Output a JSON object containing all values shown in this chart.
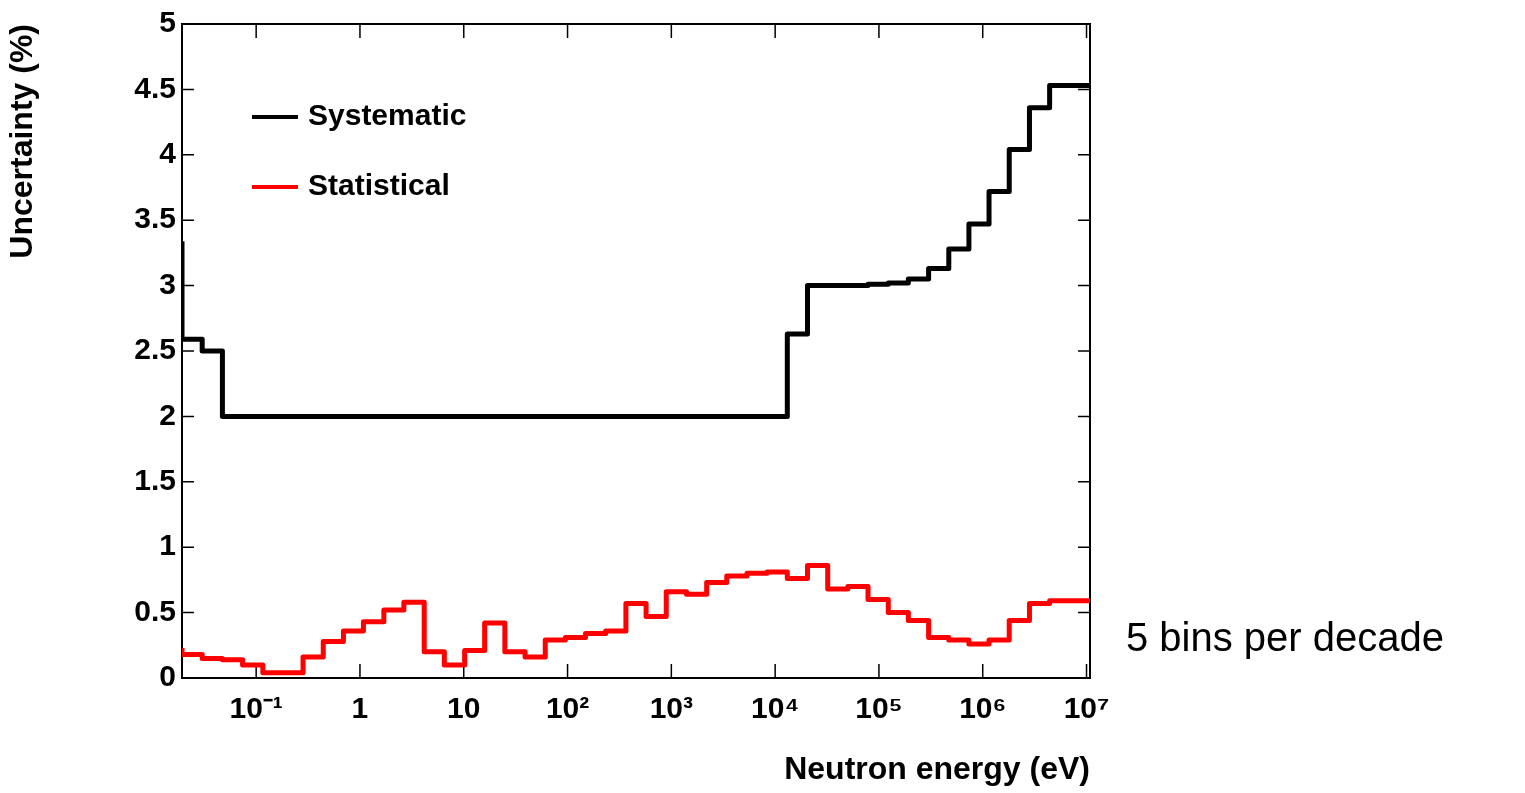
{
  "chart_data": {
    "type": "step",
    "xlabel": "Neutron energy (eV)",
    "ylabel": "Uncertainty (%)",
    "x": [
      0.0193,
      0.0302,
      0.0473,
      0.074,
      0.116,
      0.181,
      0.283,
      0.443,
      0.693,
      1.08,
      1.7,
      2.65,
      4.16,
      6.5,
      10.2,
      15.9,
      24.9,
      39,
      61,
      95.3,
      149,
      233,
      365,
      571,
      893,
      1400,
      2190,
      3420,
      5360,
      8380,
      13100,
      20500,
      32100,
      50200,
      78500,
      123000,
      192000,
      301000,
      471000,
      736000,
      1150000,
      1800000,
      2820000,
      4410000,
      6900000,
      10800000
    ],
    "series": [
      {
        "name": "Systematic",
        "color": "#000000",
        "values": [
          3.34,
          2.59,
          2.5,
          2,
          2,
          2,
          2,
          2,
          2,
          2,
          2,
          2,
          2,
          2,
          2,
          2,
          2,
          2,
          2,
          2,
          2,
          2,
          2,
          2,
          2,
          2,
          2,
          2,
          2,
          2,
          2,
          2.63,
          3,
          3,
          3,
          3.01,
          3.02,
          3.05,
          3.13,
          3.28,
          3.47,
          3.72,
          4.04,
          4.36,
          4.53,
          4.53
        ]
      },
      {
        "name": "Statistical",
        "color": "#ff0000",
        "values": [
          0.23,
          0.18,
          0.15,
          0.14,
          0.1,
          0.04,
          0.04,
          0.16,
          0.28,
          0.36,
          0.43,
          0.52,
          0.58,
          0.2,
          0.1,
          0.21,
          0.42,
          0.2,
          0.16,
          0.29,
          0.31,
          0.34,
          0.36,
          0.57,
          0.47,
          0.66,
          0.64,
          0.73,
          0.78,
          0.8,
          0.81,
          0.76,
          0.86,
          0.68,
          0.7,
          0.6,
          0.5,
          0.44,
          0.31,
          0.29,
          0.26,
          0.29,
          0.44,
          0.57,
          0.59,
          0.59
        ]
      }
    ],
    "log": "x",
    "xlim": [
      0.0193,
      10800000
    ],
    "xticks": [
      {
        "value": 0.1,
        "label": "10⁻¹"
      },
      1,
      10,
      {
        "value": 100,
        "label": "10²"
      },
      {
        "value": 1000,
        "label": "10³"
      },
      {
        "value": 10000,
        "label": "10⁴"
      },
      {
        "value": 100000,
        "label": "10⁵"
      },
      {
        "value": 1000000,
        "label": "10⁶"
      },
      {
        "value": 10000000,
        "label": "10⁷"
      }
    ],
    "ylim": [
      0,
      5
    ],
    "yticks": [
      0,
      0.5,
      1,
      1.5,
      2,
      2.5,
      3,
      3.5,
      4,
      4.5,
      5
    ],
    "legend": "top left",
    "line_style": "solid",
    "annotations": [
      "5 bins per decade"
    ]
  }
}
